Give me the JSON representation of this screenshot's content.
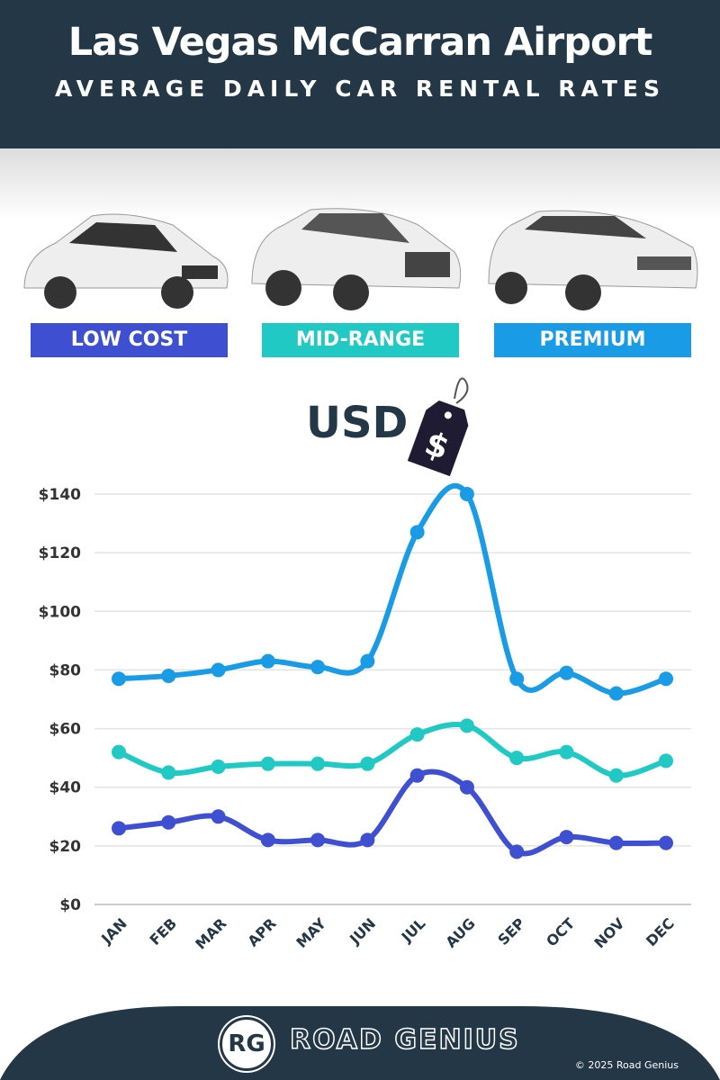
{
  "header": {
    "title": "Las Vegas McCarran Airport",
    "subtitle": "AVERAGE DAILY CAR RENTAL RATES"
  },
  "categories_legend": [
    {
      "label": "LOW COST",
      "color": "#3e4fd2"
    },
    {
      "label": "MID-RANGE",
      "color": "#21c9c4"
    },
    {
      "label": "PREMIUM",
      "color": "#1a9be6"
    }
  ],
  "currency": {
    "label": "USD",
    "tag_symbol": "$"
  },
  "chart_data": {
    "type": "line",
    "categories": [
      "JAN",
      "FEB",
      "MAR",
      "APR",
      "MAY",
      "JUN",
      "JUL",
      "AUG",
      "SEP",
      "OCT",
      "NOV",
      "DEC"
    ],
    "series": [
      {
        "name": "PREMIUM",
        "color": "#1a9be6",
        "values": [
          77,
          78,
          80,
          83,
          81,
          83,
          127,
          140,
          77,
          79,
          72,
          77
        ]
      },
      {
        "name": "MID-RANGE",
        "color": "#21c9c4",
        "values": [
          52,
          45,
          47,
          48,
          48,
          48,
          58,
          61,
          50,
          52,
          44,
          49
        ]
      },
      {
        "name": "LOW COST",
        "color": "#3e4fd2",
        "values": [
          26,
          28,
          30,
          22,
          22,
          22,
          44,
          40,
          18,
          23,
          21,
          21
        ]
      }
    ],
    "yticks": [
      "$0",
      "$20",
      "$40",
      "$60",
      "$80",
      "$100",
      "$120",
      "$140"
    ],
    "ylim": [
      0,
      140
    ],
    "grid": true
  },
  "footer": {
    "brand": "ROAD GENIUS",
    "logo": "RG",
    "copyright": "© 2025 Road Genius"
  }
}
